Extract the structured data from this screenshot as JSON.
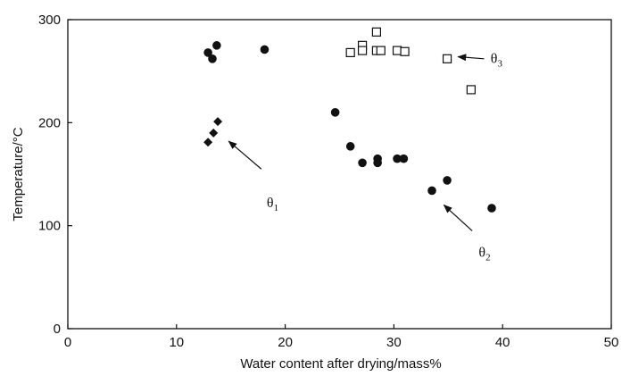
{
  "chart_data": {
    "type": "scatter",
    "xlabel": "Water content after drying/mass%",
    "ylabel": "Temperature/°C",
    "xlim": [
      0,
      50
    ],
    "ylim": [
      0,
      300
    ],
    "xticks": [
      "0",
      "10",
      "20",
      "30",
      "40",
      "50"
    ],
    "yticks": [
      "0",
      "100",
      "200",
      "300"
    ],
    "grid": false,
    "series": [
      {
        "marker": "diamond-filled",
        "points": [
          {
            "x": 12.9,
            "y": 181
          },
          {
            "x": 13.4,
            "y": 190
          },
          {
            "x": 13.8,
            "y": 201
          }
        ]
      },
      {
        "marker": "circle-filled",
        "points": [
          {
            "x": 12.9,
            "y": 268
          },
          {
            "x": 13.3,
            "y": 262
          },
          {
            "x": 13.7,
            "y": 275
          },
          {
            "x": 18.1,
            "y": 271
          },
          {
            "x": 24.6,
            "y": 210
          },
          {
            "x": 26.0,
            "y": 177
          },
          {
            "x": 27.1,
            "y": 161
          },
          {
            "x": 28.5,
            "y": 165
          },
          {
            "x": 28.5,
            "y": 161
          },
          {
            "x": 30.3,
            "y": 165
          },
          {
            "x": 30.9,
            "y": 165
          },
          {
            "x": 33.5,
            "y": 134
          },
          {
            "x": 34.9,
            "y": 144
          },
          {
            "x": 39.0,
            "y": 117
          }
        ]
      },
      {
        "marker": "square-open",
        "points": [
          {
            "x": 26.0,
            "y": 268
          },
          {
            "x": 27.1,
            "y": 275
          },
          {
            "x": 27.1,
            "y": 270
          },
          {
            "x": 28.4,
            "y": 288
          },
          {
            "x": 28.4,
            "y": 270
          },
          {
            "x": 28.8,
            "y": 270
          },
          {
            "x": 30.3,
            "y": 270
          },
          {
            "x": 31.0,
            "y": 269
          },
          {
            "x": 34.9,
            "y": 262
          },
          {
            "x": 37.1,
            "y": 232
          }
        ]
      }
    ],
    "annotations": [
      {
        "base": "θ",
        "sub": "1",
        "text_at": {
          "x": 18.3,
          "y": 118
        },
        "arrow_from": {
          "x": 17.8,
          "y": 155
        },
        "arrow_to": {
          "x": 14.8,
          "y": 182
        }
      },
      {
        "base": "θ",
        "sub": "2",
        "text_at": {
          "x": 37.8,
          "y": 70
        },
        "arrow_from": {
          "x": 37.2,
          "y": 95
        },
        "arrow_to": {
          "x": 34.6,
          "y": 120
        }
      },
      {
        "base": "θ",
        "sub": "3",
        "text_at": {
          "x": 38.9,
          "y": 258
        },
        "arrow_from": {
          "x": 38.3,
          "y": 262
        },
        "arrow_to": {
          "x": 35.9,
          "y": 264
        }
      }
    ]
  }
}
